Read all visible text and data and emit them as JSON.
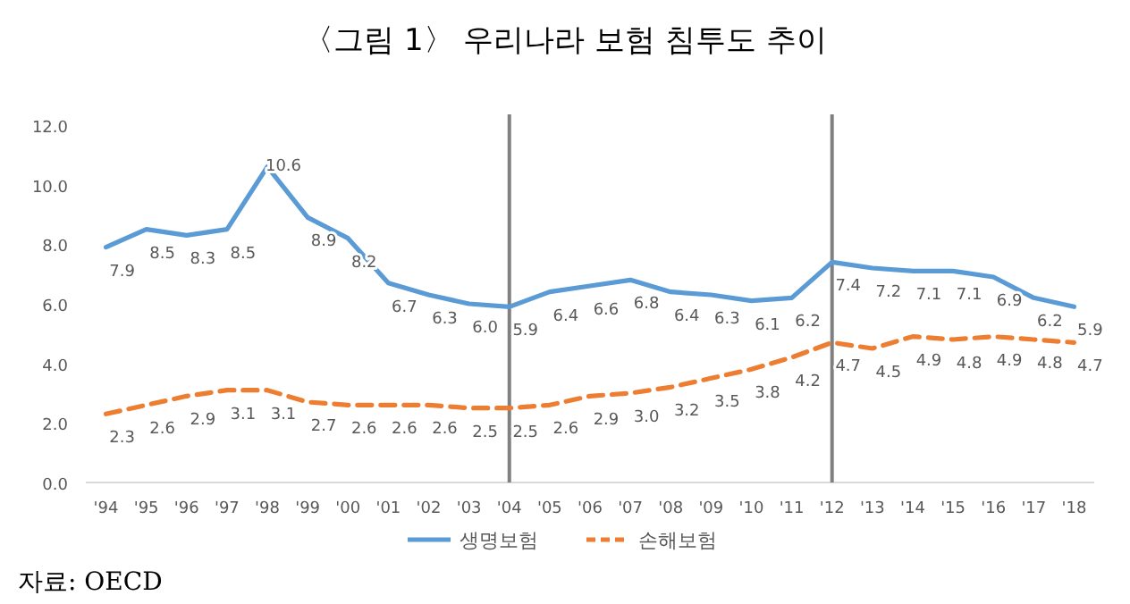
{
  "chart_data": {
    "type": "line",
    "title": "〈그림 1〉 우리나라 보험 침투도 추이",
    "categories": [
      "'94",
      "'95",
      "'96",
      "'97",
      "'98",
      "'99",
      "'00",
      "'01",
      "'02",
      "'03",
      "'04",
      "'05",
      "'06",
      "'07",
      "'08",
      "'09",
      "'10",
      "'11",
      "'12",
      "'13",
      "'14",
      "'15",
      "'16",
      "'17",
      "'18"
    ],
    "series": [
      {
        "name": "생명보험",
        "color": "#5b9bd5",
        "line_style": "solid",
        "values": [
          7.9,
          8.5,
          8.3,
          8.5,
          10.6,
          8.9,
          8.2,
          6.7,
          6.3,
          6.0,
          5.9,
          6.4,
          6.6,
          6.8,
          6.4,
          6.3,
          6.1,
          6.2,
          7.4,
          7.2,
          7.1,
          7.1,
          6.9,
          6.2,
          5.9
        ],
        "value_labels": [
          "7.9",
          "8.5",
          "8.3",
          "8.5",
          "10.6",
          "8.9",
          "8.2",
          "6.7",
          "6.3",
          "6.0",
          "5.9",
          "6.4",
          "6.6",
          "6.8",
          "6.4",
          "6.3",
          "6.1",
          "6.2",
          "7.4",
          "7.2",
          "7.1",
          "7.1",
          "6.9",
          "6.2",
          "5.9"
        ]
      },
      {
        "name": "손해보험",
        "color": "#ed7d31",
        "line_style": "dashed",
        "values": [
          2.3,
          2.6,
          2.9,
          3.1,
          3.1,
          2.7,
          2.6,
          2.6,
          2.6,
          2.5,
          2.5,
          2.6,
          2.9,
          3.0,
          3.2,
          3.5,
          3.8,
          4.2,
          4.7,
          4.5,
          4.9,
          4.8,
          4.9,
          4.8,
          4.7
        ],
        "value_labels": [
          "2.3",
          "2.6",
          "2.9",
          "3.1",
          "3.1",
          "2.7",
          "2.6",
          "2.6",
          "2.6",
          "2.5",
          "2.5",
          "2.6",
          "2.9",
          "3.0",
          "3.2",
          "3.5",
          "3.8",
          "4.2",
          "4.7",
          "4.5",
          "4.9",
          "4.8",
          "4.9",
          "4.8",
          "4.7"
        ]
      }
    ],
    "ylim": [
      0,
      12
    ],
    "yticks": [
      {
        "value": 0,
        "label": "0.0"
      },
      {
        "value": 2,
        "label": "2.0"
      },
      {
        "value": 4,
        "label": "4.0"
      },
      {
        "value": 6,
        "label": "6.0"
      },
      {
        "value": 8,
        "label": "8.0"
      },
      {
        "value": 10,
        "label": "10.0"
      },
      {
        "value": 12,
        "label": "12.0"
      }
    ],
    "ref_lines": [
      {
        "axis": "x",
        "value": "'04",
        "color": "#808080"
      },
      {
        "axis": "x",
        "value": "'12",
        "color": "#808080"
      }
    ],
    "grid": false,
    "legend": "bottom",
    "annotations": [
      "자료: OECD"
    ]
  }
}
